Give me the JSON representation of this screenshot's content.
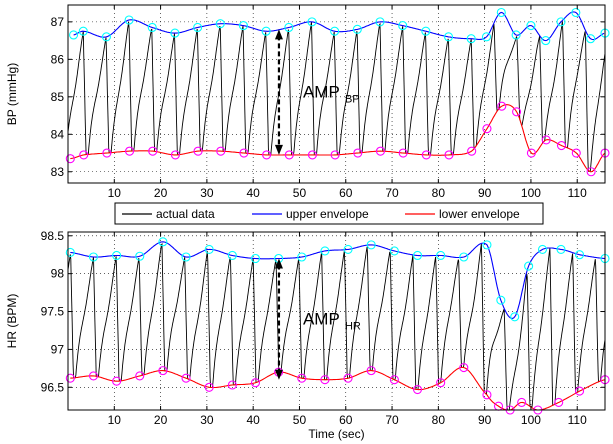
{
  "chart_data": [
    {
      "type": "line",
      "ylabel": "BP (mmHg)",
      "xlabel": "",
      "xlim": [
        0,
        116
      ],
      "ylim": [
        82.7,
        87.45
      ],
      "xticks": [
        10,
        20,
        30,
        40,
        50,
        60,
        70,
        80,
        90,
        100,
        110
      ],
      "yticks": [
        83,
        84,
        85,
        86,
        87
      ],
      "grid": true,
      "annotation": {
        "main": "AMP",
        "sub": "BP",
        "x_arrow": 46,
        "y_top": 86.8,
        "y_bottom": 83.45
      },
      "colors": {
        "actual": "#000000",
        "upper": "#0000ff",
        "lower": "#ff0000",
        "upper_marker": "#00ffff",
        "lower_marker": "#ff00ff"
      },
      "series": [
        {
          "name": "upper envelope",
          "x": [
            1.2,
            3.3,
            8.3,
            13.2,
            18.2,
            23.1,
            28.0,
            32.9,
            37.9,
            42.8,
            47.7,
            52.7,
            57.6,
            62.5,
            67.4,
            72.3,
            77.3,
            82.2,
            87.1,
            90.4,
            93.6,
            96.8,
            100.0,
            103.2,
            106.5,
            109.7,
            112.9,
            116.0
          ],
          "values": [
            86.65,
            86.75,
            86.6,
            87.05,
            86.85,
            86.7,
            86.85,
            86.95,
            86.9,
            86.75,
            86.85,
            87.0,
            86.75,
            86.8,
            87.0,
            86.9,
            86.75,
            86.6,
            86.55,
            86.6,
            87.25,
            86.65,
            86.9,
            86.5,
            87.0,
            87.25,
            86.55,
            86.7
          ]
        },
        {
          "name": "lower envelope",
          "x": [
            0.5,
            3.4,
            8.4,
            13.3,
            18.3,
            23.2,
            28.1,
            33.0,
            38.0,
            42.9,
            47.8,
            52.8,
            57.7,
            62.6,
            67.5,
            72.4,
            77.4,
            82.3,
            87.2,
            90.5,
            93.7,
            96.9,
            100.1,
            103.3,
            106.6,
            109.8,
            113.0,
            116.0
          ],
          "values": [
            83.35,
            83.45,
            83.5,
            83.55,
            83.55,
            83.45,
            83.55,
            83.55,
            83.5,
            83.45,
            83.45,
            83.45,
            83.45,
            83.5,
            83.55,
            83.5,
            83.45,
            83.45,
            83.55,
            84.15,
            84.75,
            84.6,
            83.5,
            83.85,
            83.7,
            83.5,
            83.0,
            83.5
          ]
        },
        {
          "name": "actual data"
        }
      ]
    },
    {
      "type": "line",
      "ylabel": "HR (BPM)",
      "xlabel": "Time (sec)",
      "xlim": [
        0,
        116
      ],
      "ylim": [
        96.2,
        98.55
      ],
      "xticks": [
        10,
        20,
        30,
        40,
        50,
        60,
        70,
        80,
        90,
        100,
        110
      ],
      "yticks": [
        96.5,
        97,
        97.5,
        98,
        98.5
      ],
      "grid": true,
      "annotation": {
        "main": "AMP",
        "sub": "HR",
        "x_arrow": 46,
        "y_top": 98.2,
        "y_bottom": 96.6
      },
      "colors": {
        "actual": "#000000",
        "upper": "#0000ff",
        "lower": "#ff0000",
        "upper_marker": "#00ffff",
        "lower_marker": "#ff00ff"
      },
      "series": [
        {
          "name": "upper envelope",
          "x": [
            0.5,
            5.5,
            10.5,
            15.5,
            20.5,
            25.5,
            30.5,
            35.5,
            40.5,
            45.5,
            50.5,
            55.5,
            60.5,
            65.5,
            70.5,
            75.5,
            80.5,
            85.5,
            90.5,
            93.5,
            96.5,
            99.5,
            102.5,
            106.5,
            110.5,
            116.0
          ],
          "values": [
            98.28,
            98.22,
            98.24,
            98.23,
            98.42,
            98.22,
            98.32,
            98.24,
            98.2,
            98.2,
            98.22,
            98.3,
            98.32,
            98.38,
            98.3,
            98.24,
            98.24,
            98.22,
            98.38,
            97.65,
            97.43,
            98.1,
            98.32,
            98.32,
            98.25,
            98.2
          ]
        },
        {
          "name": "lower envelope",
          "x": [
            0.5,
            5.5,
            10.5,
            15.5,
            20.5,
            25.5,
            30.5,
            35.5,
            40.5,
            45.5,
            50.5,
            55.5,
            60.5,
            65.5,
            70.5,
            75.5,
            80.5,
            85.5,
            90.5,
            93.0,
            95.5,
            98.0,
            101.5,
            106.0,
            110.5,
            116.0
          ],
          "values": [
            96.62,
            96.65,
            96.58,
            96.65,
            96.72,
            96.62,
            96.5,
            96.53,
            96.56,
            96.7,
            96.62,
            96.6,
            96.62,
            96.72,
            96.6,
            96.47,
            96.56,
            96.76,
            96.4,
            96.25,
            96.2,
            96.3,
            96.2,
            96.3,
            96.45,
            96.6
          ]
        },
        {
          "name": "actual data"
        }
      ]
    }
  ],
  "legend": {
    "items": [
      "actual data",
      "upper envelope",
      "lower envelope"
    ],
    "colors": [
      "#000000",
      "#0000ff",
      "#ff0000"
    ],
    "placement": "between-panels"
  }
}
